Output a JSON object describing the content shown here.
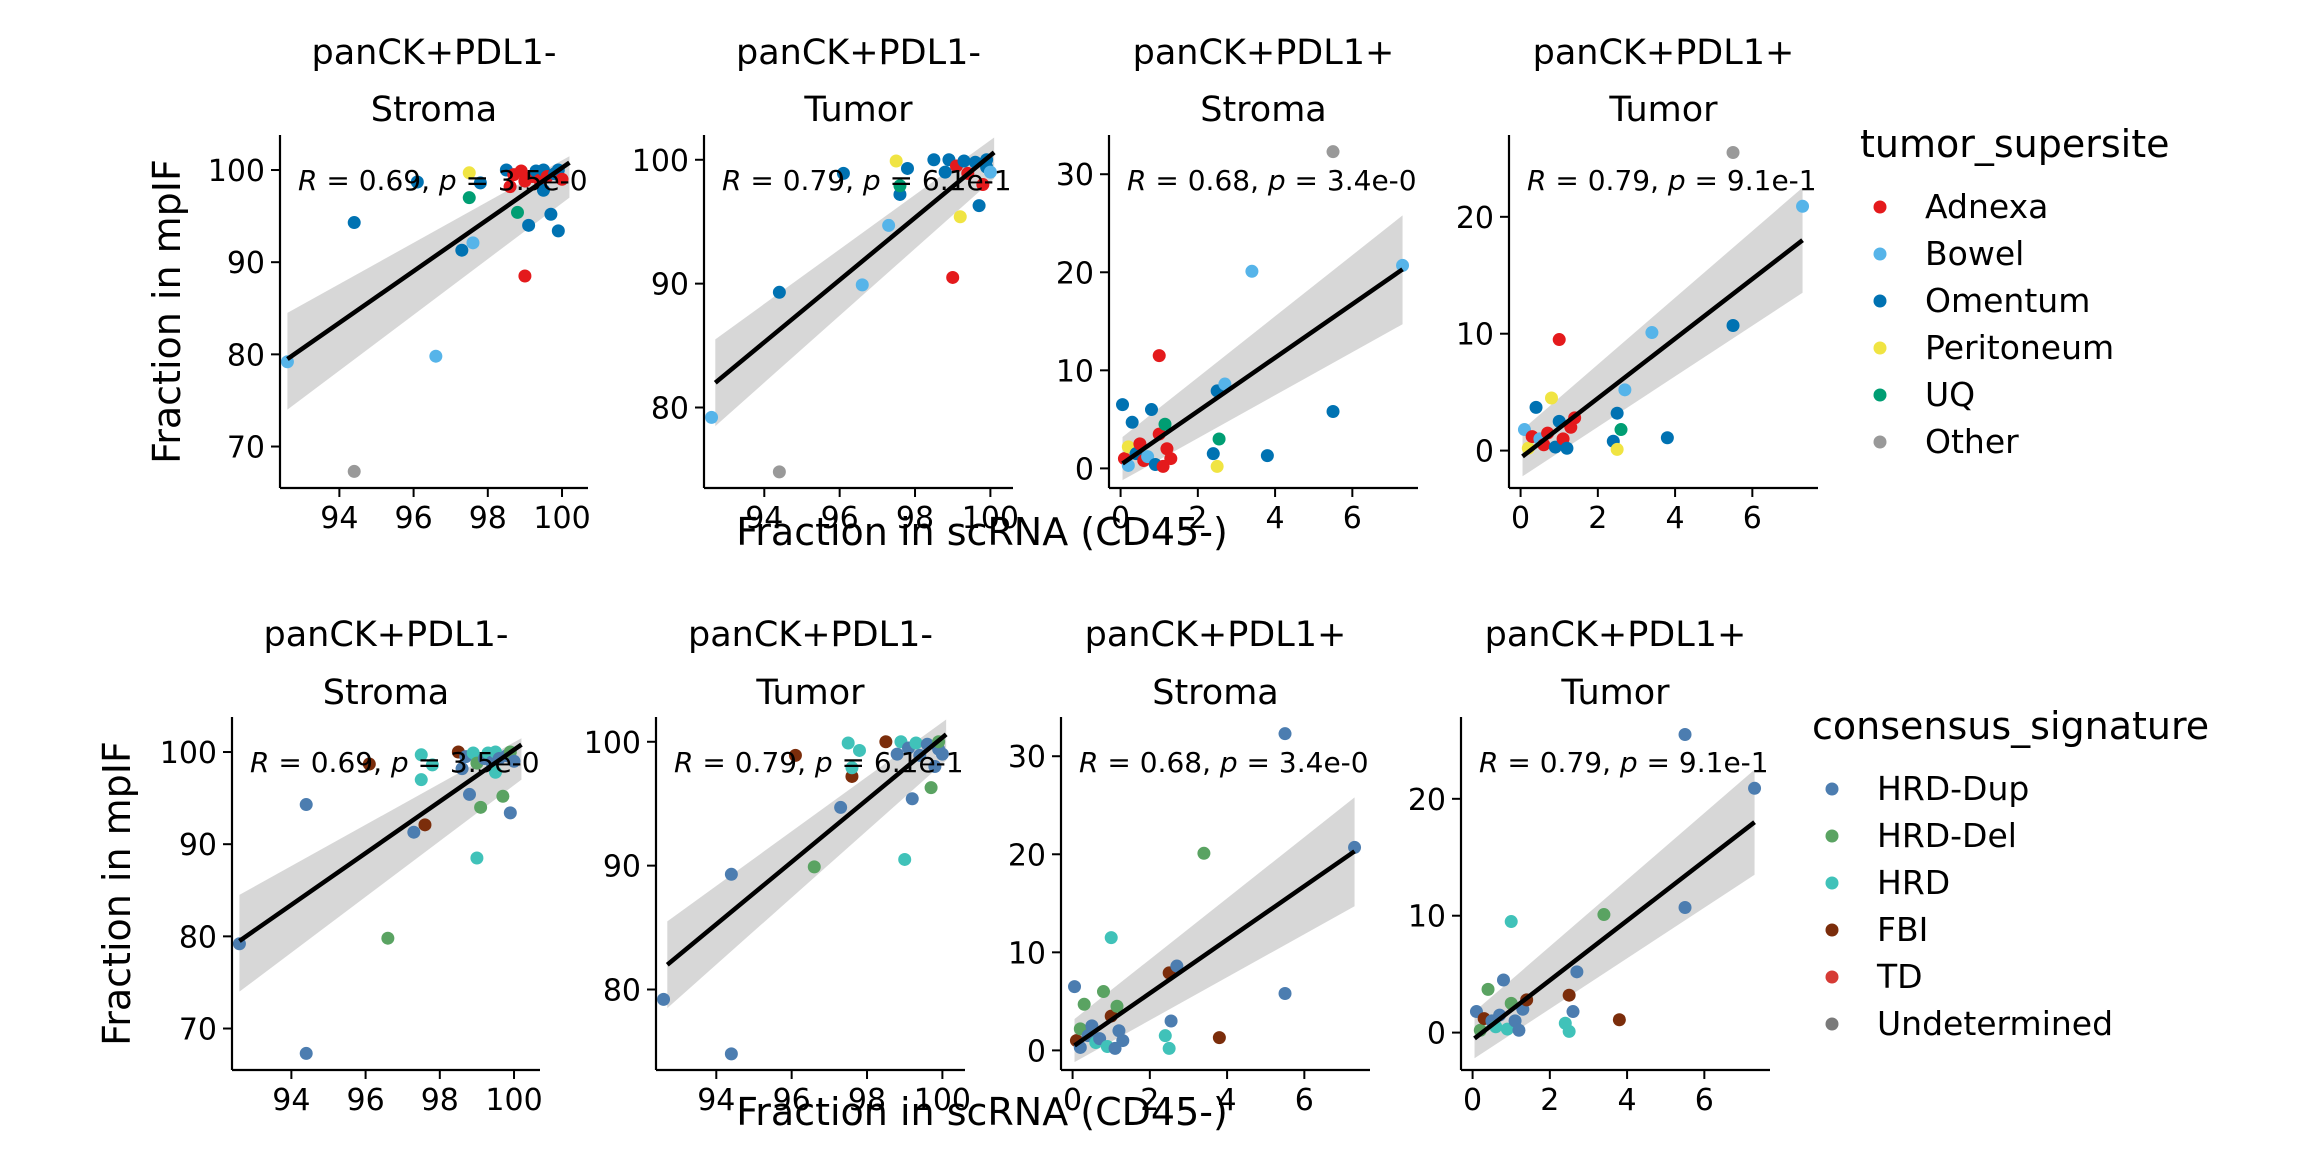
{
  "chart_data": [
    {
      "type": "scatter",
      "title": "panCK+PDL1-\nStroma",
      "xlabel": "Fraction in scRNA (CD45-)",
      "ylabel": "Fraction in mpIF",
      "xlim": [
        92.4,
        100.7
      ],
      "ylim": [
        65.5,
        103.8
      ],
      "xticks": [
        94,
        96,
        98,
        100
      ],
      "yticks": [
        70,
        80,
        90,
        100
      ],
      "annotation": "R = 0.69, p = 3.5e-0",
      "fit": {
        "x": [
          92.6,
          100.2
        ],
        "y": [
          79.5,
          100.8
        ]
      },
      "band": {
        "upper": [
          84.5,
          101.5
        ],
        "lower": [
          74.0,
          97.0
        ]
      },
      "points": [
        {
          "x": 92.6,
          "y": 79.2,
          "g1": "Bowel",
          "g2": "HRD-Dup"
        },
        {
          "x": 94.4,
          "y": 94.3,
          "g1": "Omentum",
          "g2": "HRD-Dup"
        },
        {
          "x": 94.4,
          "y": 67.3,
          "g1": "Other",
          "g2": "HRD-Dup"
        },
        {
          "x": 96.1,
          "y": 98.7,
          "g1": "Omentum",
          "g2": "FBI"
        },
        {
          "x": 96.6,
          "y": 79.8,
          "g1": "Bowel",
          "g2": "HRD-Del"
        },
        {
          "x": 97.3,
          "y": 91.3,
          "g1": "Omentum",
          "g2": "HRD-Dup"
        },
        {
          "x": 97.5,
          "y": 99.7,
          "g1": "Peritoneum",
          "g2": "HRD"
        },
        {
          "x": 97.6,
          "y": 92.1,
          "g1": "Bowel",
          "g2": "FBI"
        },
        {
          "x": 97.5,
          "y": 97.0,
          "g1": "UQ",
          "g2": "HRD"
        },
        {
          "x": 97.8,
          "y": 98.6,
          "g1": "Omentum",
          "g2": "HRD"
        },
        {
          "x": 98.5,
          "y": 100.0,
          "g1": "Omentum",
          "g2": "FBI"
        },
        {
          "x": 98.6,
          "y": 98.2,
          "g1": "Adnexa",
          "g2": "HRD-Dup"
        },
        {
          "x": 98.7,
          "y": 99.5,
          "g1": "Adnexa",
          "g2": "HRD-Dup"
        },
        {
          "x": 98.8,
          "y": 95.4,
          "g1": "UQ",
          "g2": "HRD-Dup"
        },
        {
          "x": 98.9,
          "y": 99.9,
          "g1": "Adnexa",
          "g2": "HRD"
        },
        {
          "x": 99.0,
          "y": 88.5,
          "g1": "Adnexa",
          "g2": "HRD"
        },
        {
          "x": 99.0,
          "y": 98.8,
          "g1": "Adnexa",
          "g2": "HRD-Del"
        },
        {
          "x": 99.1,
          "y": 94.0,
          "g1": "Omentum",
          "g2": "HRD-Del"
        },
        {
          "x": 99.2,
          "y": 99.3,
          "g1": "Adnexa",
          "g2": "HRD-Dup"
        },
        {
          "x": 99.3,
          "y": 99.9,
          "g1": "Omentum",
          "g2": "HRD"
        },
        {
          "x": 99.4,
          "y": 98.9,
          "g1": "Adnexa",
          "g2": "HRD-Dup"
        },
        {
          "x": 99.5,
          "y": 97.8,
          "g1": "Omentum",
          "g2": "HRD"
        },
        {
          "x": 99.5,
          "y": 100.0,
          "g1": "Omentum",
          "g2": "HRD"
        },
        {
          "x": 99.6,
          "y": 99.3,
          "g1": "Adnexa",
          "g2": "HRD-Dup"
        },
        {
          "x": 99.7,
          "y": 95.2,
          "g1": "Omentum",
          "g2": "HRD-Del"
        },
        {
          "x": 99.8,
          "y": 99.6,
          "g1": "Omentum",
          "g2": "HRD-Dup"
        },
        {
          "x": 99.9,
          "y": 93.4,
          "g1": "Omentum",
          "g2": "HRD-Dup"
        },
        {
          "x": 99.9,
          "y": 100.0,
          "g1": "Omentum",
          "g2": "HRD-Del"
        },
        {
          "x": 100.0,
          "y": 99.0,
          "g1": "Adnexa",
          "g2": "HRD-Dup"
        }
      ]
    },
    {
      "type": "scatter",
      "title": "panCK+PDL1-\nTumor",
      "xlabel": "Fraction in scRNA (CD45-)",
      "ylabel": "Fraction in mpIF",
      "xlim": [
        92.4,
        100.6
      ],
      "ylim": [
        73.5,
        102.0
      ],
      "xticks": [
        94,
        96,
        98,
        100
      ],
      "yticks": [
        80,
        90,
        100
      ],
      "annotation": "R = 0.79, p = 6.1e-1",
      "fit": {
        "x": [
          92.7,
          100.1
        ],
        "y": [
          82.0,
          100.6
        ]
      },
      "band": {
        "upper": [
          85.5,
          101.8
        ],
        "lower": [
          78.5,
          98.5
        ]
      },
      "points": [
        {
          "x": 92.6,
          "y": 79.2,
          "g1": "Bowel",
          "g2": "HRD-Dup"
        },
        {
          "x": 94.4,
          "y": 89.3,
          "g1": "Omentum",
          "g2": "HRD-Dup"
        },
        {
          "x": 94.4,
          "y": 74.8,
          "g1": "Other",
          "g2": "HRD-Dup"
        },
        {
          "x": 96.1,
          "y": 98.9,
          "g1": "Omentum",
          "g2": "FBI"
        },
        {
          "x": 96.6,
          "y": 89.9,
          "g1": "Bowel",
          "g2": "HRD-Del"
        },
        {
          "x": 97.3,
          "y": 94.7,
          "g1": "Bowel",
          "g2": "HRD-Dup"
        },
        {
          "x": 97.5,
          "y": 99.9,
          "g1": "Peritoneum",
          "g2": "HRD"
        },
        {
          "x": 97.6,
          "y": 97.2,
          "g1": "Omentum",
          "g2": "FBI"
        },
        {
          "x": 97.6,
          "y": 97.9,
          "g1": "UQ",
          "g2": "HRD"
        },
        {
          "x": 97.8,
          "y": 99.3,
          "g1": "Omentum",
          "g2": "HRD"
        },
        {
          "x": 98.5,
          "y": 100.0,
          "g1": "Omentum",
          "g2": "FBI"
        },
        {
          "x": 98.8,
          "y": 99.0,
          "g1": "Omentum",
          "g2": "HRD-Dup"
        },
        {
          "x": 98.9,
          "y": 100.0,
          "g1": "Omentum",
          "g2": "HRD"
        },
        {
          "x": 99.0,
          "y": 90.5,
          "g1": "Adnexa",
          "g2": "HRD"
        },
        {
          "x": 99.1,
          "y": 99.5,
          "g1": "Adnexa",
          "g2": "HRD-Dup"
        },
        {
          "x": 99.2,
          "y": 95.4,
          "g1": "Peritoneum",
          "g2": "HRD-Dup"
        },
        {
          "x": 99.3,
          "y": 99.9,
          "g1": "Omentum",
          "g2": "HRD"
        },
        {
          "x": 99.4,
          "y": 98.9,
          "g1": "Adnexa",
          "g2": "HRD-Dup"
        },
        {
          "x": 99.6,
          "y": 99.8,
          "g1": "Omentum",
          "g2": "HRD-Dup"
        },
        {
          "x": 99.7,
          "y": 96.3,
          "g1": "Omentum",
          "g2": "HRD-Del"
        },
        {
          "x": 99.8,
          "y": 98.0,
          "g1": "Adnexa",
          "g2": "HRD-Dup"
        },
        {
          "x": 99.9,
          "y": 99.4,
          "g1": "Omentum",
          "g2": "HRD-Dup"
        },
        {
          "x": 99.9,
          "y": 100.0,
          "g1": "Omentum",
          "g2": "HRD-Del"
        },
        {
          "x": 100.0,
          "y": 99.0,
          "g1": "Bowel",
          "g2": "HRD-Dup"
        }
      ]
    },
    {
      "type": "scatter",
      "title": "panCK+PDL1+\nStroma",
      "xlabel": "Fraction in scRNA (CD45-)",
      "ylabel": "Fraction in mpIF",
      "xlim": [
        -0.3,
        7.7
      ],
      "ylim": [
        -2.0,
        34.0
      ],
      "xticks": [
        0,
        2,
        4,
        6
      ],
      "yticks": [
        0,
        10,
        20,
        30
      ],
      "annotation": "R = 0.68, p = 3.4e-0",
      "fit": {
        "x": [
          0.05,
          7.3
        ],
        "y": [
          0.5,
          20.3
        ]
      },
      "band": {
        "upper": [
          3.2,
          25.8
        ],
        "lower": [
          -1.2,
          14.7
        ]
      },
      "points": [
        {
          "x": 0.05,
          "y": 6.5,
          "g1": "Omentum",
          "g2": "HRD-Dup"
        },
        {
          "x": 0.1,
          "y": 1.0,
          "g1": "Adnexa",
          "g2": "FBI"
        },
        {
          "x": 0.2,
          "y": 2.2,
          "g1": "Peritoneum",
          "g2": "HRD-Del"
        },
        {
          "x": 0.2,
          "y": 0.3,
          "g1": "Bowel",
          "g2": "HRD-Dup"
        },
        {
          "x": 0.3,
          "y": 4.7,
          "g1": "Omentum",
          "g2": "HRD-Del"
        },
        {
          "x": 0.4,
          "y": 1.5,
          "g1": "Omentum",
          "g2": "HRD-Dup"
        },
        {
          "x": 0.5,
          "y": 2.5,
          "g1": "Adnexa",
          "g2": "HRD-Dup"
        },
        {
          "x": 0.6,
          "y": 0.8,
          "g1": "Adnexa",
          "g2": "HRD"
        },
        {
          "x": 0.7,
          "y": 1.2,
          "g1": "Bowel",
          "g2": "HRD-Dup"
        },
        {
          "x": 0.8,
          "y": 6.0,
          "g1": "Omentum",
          "g2": "HRD-Del"
        },
        {
          "x": 0.9,
          "y": 0.4,
          "g1": "Omentum",
          "g2": "HRD"
        },
        {
          "x": 1.0,
          "y": 11.5,
          "g1": "Adnexa",
          "g2": "HRD"
        },
        {
          "x": 1.0,
          "y": 3.5,
          "g1": "Adnexa",
          "g2": "FBI"
        },
        {
          "x": 1.1,
          "y": 0.2,
          "g1": "Adnexa",
          "g2": "HRD-Dup"
        },
        {
          "x": 1.15,
          "y": 4.5,
          "g1": "UQ",
          "g2": "HRD-Del"
        },
        {
          "x": 1.2,
          "y": 2.0,
          "g1": "Adnexa",
          "g2": "HRD-Dup"
        },
        {
          "x": 1.3,
          "y": 1.0,
          "g1": "Adnexa",
          "g2": "HRD-Dup"
        },
        {
          "x": 2.4,
          "y": 1.5,
          "g1": "Omentum",
          "g2": "HRD"
        },
        {
          "x": 2.5,
          "y": 7.9,
          "g1": "Omentum",
          "g2": "FBI"
        },
        {
          "x": 2.5,
          "y": 0.2,
          "g1": "Peritoneum",
          "g2": "HRD"
        },
        {
          "x": 2.55,
          "y": 3.0,
          "g1": "UQ",
          "g2": "HRD-Dup"
        },
        {
          "x": 2.7,
          "y": 8.6,
          "g1": "Bowel",
          "g2": "HRD-Dup"
        },
        {
          "x": 3.4,
          "y": 20.1,
          "g1": "Bowel",
          "g2": "HRD-Del"
        },
        {
          "x": 3.8,
          "y": 1.3,
          "g1": "Omentum",
          "g2": "FBI"
        },
        {
          "x": 5.5,
          "y": 32.3,
          "g1": "Other",
          "g2": "HRD-Dup"
        },
        {
          "x": 5.5,
          "y": 5.8,
          "g1": "Omentum",
          "g2": "HRD-Dup"
        },
        {
          "x": 7.3,
          "y": 20.7,
          "g1": "Bowel",
          "g2": "HRD-Dup"
        }
      ]
    },
    {
      "type": "scatter",
      "title": "panCK+PDL1+\nTumor",
      "xlabel": "Fraction in scRNA (CD45-)",
      "ylabel": "Fraction in mpIF",
      "xlim": [
        -0.3,
        7.7
      ],
      "ylim": [
        -3.2,
        27.0
      ],
      "xticks": [
        0,
        2,
        4,
        6
      ],
      "yticks": [
        0,
        10,
        20
      ],
      "annotation": "R = 0.79, p = 9.1e-1",
      "fit": {
        "x": [
          0.05,
          7.3
        ],
        "y": [
          -0.5,
          18.0
        ]
      },
      "band": {
        "upper": [
          1.8,
          22.5
        ],
        "lower": [
          -2.2,
          13.5
        ]
      },
      "points": [
        {
          "x": 0.1,
          "y": 1.8,
          "g1": "Bowel",
          "g2": "HRD-Dup"
        },
        {
          "x": 0.2,
          "y": 0.2,
          "g1": "Peritoneum",
          "g2": "HRD-Del"
        },
        {
          "x": 0.3,
          "y": 1.2,
          "g1": "Adnexa",
          "g2": "FBI"
        },
        {
          "x": 0.4,
          "y": 3.7,
          "g1": "Omentum",
          "g2": "HRD-Del"
        },
        {
          "x": 0.5,
          "y": 1.0,
          "g1": "Bowel",
          "g2": "HRD-Dup"
        },
        {
          "x": 0.6,
          "y": 0.5,
          "g1": "Adnexa",
          "g2": "HRD"
        },
        {
          "x": 0.7,
          "y": 1.5,
          "g1": "Adnexa",
          "g2": "HRD-Dup"
        },
        {
          "x": 0.8,
          "y": 4.5,
          "g1": "Peritoneum",
          "g2": "HRD-Dup"
        },
        {
          "x": 0.9,
          "y": 0.3,
          "g1": "Omentum",
          "g2": "HRD"
        },
        {
          "x": 1.0,
          "y": 9.5,
          "g1": "Adnexa",
          "g2": "HRD"
        },
        {
          "x": 1.0,
          "y": 2.5,
          "g1": "Omentum",
          "g2": "HRD-Del"
        },
        {
          "x": 1.1,
          "y": 1.0,
          "g1": "Adnexa",
          "g2": "HRD-Dup"
        },
        {
          "x": 1.2,
          "y": 0.2,
          "g1": "Omentum",
          "g2": "HRD-Dup"
        },
        {
          "x": 1.3,
          "y": 2.0,
          "g1": "Adnexa",
          "g2": "HRD-Dup"
        },
        {
          "x": 1.4,
          "y": 2.8,
          "g1": "Adnexa",
          "g2": "FBI"
        },
        {
          "x": 2.4,
          "y": 0.8,
          "g1": "Omentum",
          "g2": "HRD"
        },
        {
          "x": 2.5,
          "y": 3.2,
          "g1": "Omentum",
          "g2": "FBI"
        },
        {
          "x": 2.5,
          "y": 0.1,
          "g1": "Peritoneum",
          "g2": "HRD"
        },
        {
          "x": 2.6,
          "y": 1.8,
          "g1": "UQ",
          "g2": "HRD-Dup"
        },
        {
          "x": 2.7,
          "y": 5.2,
          "g1": "Bowel",
          "g2": "HRD-Dup"
        },
        {
          "x": 3.4,
          "y": 10.1,
          "g1": "Bowel",
          "g2": "HRD-Del"
        },
        {
          "x": 3.8,
          "y": 1.1,
          "g1": "Omentum",
          "g2": "FBI"
        },
        {
          "x": 5.5,
          "y": 25.5,
          "g1": "Other",
          "g2": "HRD-Dup"
        },
        {
          "x": 5.5,
          "y": 10.7,
          "g1": "Omentum",
          "g2": "HRD-Dup"
        },
        {
          "x": 7.3,
          "y": 20.9,
          "g1": "Bowel",
          "g2": "HRD-Dup"
        }
      ]
    }
  ],
  "figure": {
    "x_axis_label": "Fraction in scRNA (CD45-)",
    "y_axis_label": "Fraction in mpIF"
  },
  "legends": [
    {
      "title": "tumor_supersite",
      "key": "g1",
      "items": [
        {
          "label": "Adnexa",
          "color": "#e41a1c"
        },
        {
          "label": "Bowel",
          "color": "#56b4e9"
        },
        {
          "label": "Omentum",
          "color": "#0072b2"
        },
        {
          "label": "Peritoneum",
          "color": "#f0e442"
        },
        {
          "label": "UQ",
          "color": "#009e73"
        },
        {
          "label": "Other",
          "color": "#999999"
        }
      ]
    },
    {
      "title": "consensus_signature",
      "key": "g2",
      "items": [
        {
          "label": "HRD-Dup",
          "color": "#4c7db0"
        },
        {
          "label": "HRD-Del",
          "color": "#5aa362"
        },
        {
          "label": "HRD",
          "color": "#40c2b9"
        },
        {
          "label": "FBI",
          "color": "#7b2d0b"
        },
        {
          "label": "TD",
          "color": "#d63b35"
        },
        {
          "label": "Undetermined",
          "color": "#7a7a7a"
        }
      ]
    }
  ],
  "style": {
    "fit_line_color": "#000000",
    "band_color": "#d3d3d3"
  }
}
